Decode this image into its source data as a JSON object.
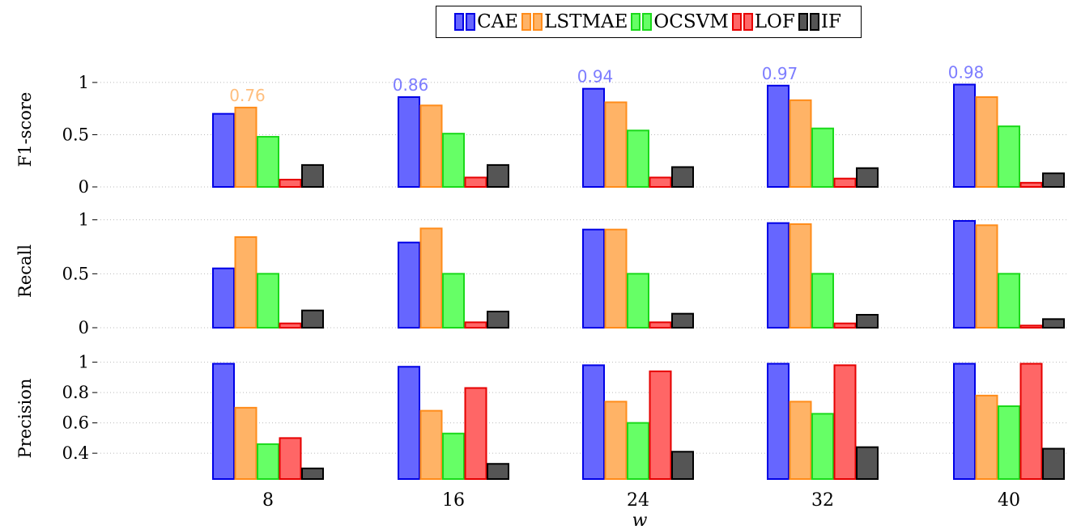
{
  "chart_data": {
    "type": "bar",
    "categories": [
      "8",
      "16",
      "24",
      "32",
      "40"
    ],
    "xlabel": "w",
    "legend": {
      "placement": "top-center",
      "entries": [
        "CAE",
        "LSTMAE",
        "OCSVM",
        "LOF",
        "IF"
      ]
    },
    "colors": {
      "CAE": {
        "fill": "#6666ff",
        "stroke": "#0000e6"
      },
      "LSTMAE": {
        "fill": "#ffb366",
        "stroke": "#ff8c1a"
      },
      "OCSVM": {
        "fill": "#66ff66",
        "stroke": "#1ad91a"
      },
      "LOF": {
        "fill": "#ff6666",
        "stroke": "#e60000"
      },
      "IF": {
        "fill": "#555555",
        "stroke": "#000000"
      }
    },
    "grid": "horizontal dotted",
    "panels": [
      {
        "ylabel": "F1-score",
        "ylim": [
          0,
          1.1
        ],
        "yticks": [
          "0",
          "0.5",
          "1"
        ],
        "series": [
          {
            "name": "CAE",
            "values": [
              0.7,
              0.86,
              0.94,
              0.97,
              0.98
            ]
          },
          {
            "name": "LSTMAE",
            "values": [
              0.76,
              0.78,
              0.81,
              0.83,
              0.86
            ]
          },
          {
            "name": "OCSVM",
            "values": [
              0.48,
              0.51,
              0.54,
              0.56,
              0.58
            ]
          },
          {
            "name": "LOF",
            "values": [
              0.07,
              0.09,
              0.09,
              0.08,
              0.04
            ]
          },
          {
            "name": "IF",
            "values": [
              0.21,
              0.21,
              0.19,
              0.18,
              0.13
            ]
          }
        ],
        "annotations": [
          {
            "category": "8",
            "series": "LSTMAE",
            "label": "0.76"
          },
          {
            "category": "16",
            "series": "CAE",
            "label": "0.86"
          },
          {
            "category": "24",
            "series": "CAE",
            "label": "0.94"
          },
          {
            "category": "32",
            "series": "CAE",
            "label": "0.97"
          },
          {
            "category": "40",
            "series": "CAE",
            "label": "0.98"
          }
        ]
      },
      {
        "ylabel": "Recall",
        "ylim": [
          0,
          1.05
        ],
        "yticks": [
          "0",
          "0.5",
          "1"
        ],
        "series": [
          {
            "name": "CAE",
            "values": [
              0.55,
              0.79,
              0.91,
              0.97,
              0.99
            ]
          },
          {
            "name": "LSTMAE",
            "values": [
              0.84,
              0.92,
              0.91,
              0.96,
              0.95
            ]
          },
          {
            "name": "OCSVM",
            "values": [
              0.5,
              0.5,
              0.5,
              0.5,
              0.5
            ]
          },
          {
            "name": "LOF",
            "values": [
              0.04,
              0.05,
              0.05,
              0.04,
              0.02
            ]
          },
          {
            "name": "IF",
            "values": [
              0.16,
              0.15,
              0.13,
              0.12,
              0.08
            ]
          }
        ]
      },
      {
        "ylabel": "Precision",
        "ylim": [
          0.23,
          1.03
        ],
        "yticks": [
          "0.4",
          "0.6",
          "0.8",
          "1"
        ],
        "series": [
          {
            "name": "CAE",
            "values": [
              0.99,
              0.97,
              0.98,
              0.99,
              0.99
            ]
          },
          {
            "name": "LSTMAE",
            "values": [
              0.7,
              0.68,
              0.74,
              0.74,
              0.78
            ]
          },
          {
            "name": "OCSVM",
            "values": [
              0.46,
              0.53,
              0.6,
              0.66,
              0.71
            ]
          },
          {
            "name": "LOF",
            "values": [
              0.5,
              0.83,
              0.94,
              0.98,
              0.99
            ]
          },
          {
            "name": "IF",
            "values": [
              0.3,
              0.33,
              0.41,
              0.44,
              0.43
            ]
          }
        ]
      }
    ]
  }
}
